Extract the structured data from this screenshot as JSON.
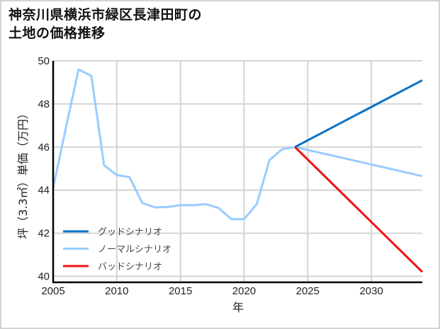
{
  "title": {
    "line1": "神奈川県横浜市緑区長津田町の",
    "line2": "土地の価格推移"
  },
  "chart_data": {
    "type": "line",
    "title": "神奈川県横浜市緑区長津田町の土地の価格推移",
    "xlabel": "年",
    "ylabel": "坪（3.3㎡）単価（万円）",
    "xlim": [
      2005,
      2034
    ],
    "ylim": [
      39.7,
      50
    ],
    "x_ticks": [
      2005,
      2010,
      2015,
      2020,
      2025,
      2030
    ],
    "y_ticks": [
      40,
      42,
      44,
      46,
      48,
      50
    ],
    "grid": true,
    "legend_position": "lower left",
    "series": [
      {
        "name": "グッドシナリオ",
        "color": "#0a72c4",
        "x": [
          2024,
          2034
        ],
        "values": [
          46.0,
          49.1
        ]
      },
      {
        "name": "ノーマルシナリオ",
        "color": "#99ccff",
        "x": [
          2005,
          2006,
          2007,
          2008,
          2009,
          2010,
          2011,
          2012,
          2013,
          2014,
          2015,
          2016,
          2017,
          2018,
          2019,
          2020,
          2021,
          2022,
          2023,
          2024,
          2034
        ],
        "values": [
          44.1,
          46.9,
          49.6,
          49.3,
          45.15,
          44.7,
          44.6,
          43.4,
          43.2,
          43.22,
          43.3,
          43.3,
          43.35,
          43.17,
          42.65,
          42.65,
          43.35,
          45.4,
          45.9,
          46.0,
          44.65
        ]
      },
      {
        "name": "バッドシナリオ",
        "color": "#ee1111",
        "x": [
          2024,
          2034
        ],
        "values": [
          46.0,
          40.2
        ]
      }
    ]
  }
}
